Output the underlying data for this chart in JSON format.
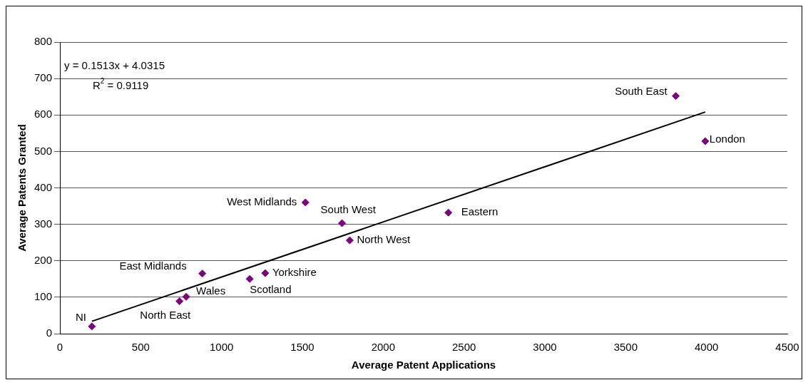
{
  "chart_data": {
    "type": "scatter",
    "xlabel": "Average Patent Applications",
    "ylabel": "Average Patents Granted",
    "xlim": [
      0,
      4500
    ],
    "xticks": [
      0,
      500,
      1000,
      1500,
      2000,
      2500,
      3000,
      3500,
      4000,
      4500
    ],
    "ylim": [
      0,
      800
    ],
    "yticks": [
      0,
      100,
      200,
      300,
      400,
      500,
      600,
      700,
      800
    ],
    "grid": "y",
    "legend": false,
    "marker": "diamond",
    "series": [
      {
        "color": "#7f0080",
        "x": [
          198,
          740,
          781,
          881,
          1174,
          1270,
          1519,
          1745,
          1793,
          2403,
          3810,
          3992
        ],
        "values": [
          20,
          89,
          101,
          165,
          150,
          166,
          360,
          303,
          256,
          332,
          652,
          528
        ]
      },
      {
        "type": "line",
        "color": "#000000",
        "x": [
          198,
          3992
        ],
        "values": [
          34,
          608
        ],
        "marker": "none",
        "line_style": "solid"
      }
    ],
    "annotations": [
      {
        "text": "NI",
        "x": 198,
        "y": 20
      },
      {
        "text": "North East",
        "x": 740,
        "y": 89
      },
      {
        "text": "Wales",
        "x": 781,
        "y": 101
      },
      {
        "text": "East Midlands",
        "x": 881,
        "y": 165
      },
      {
        "text": "Scotland",
        "x": 1174,
        "y": 150
      },
      {
        "text": "Yorkshire",
        "x": 1270,
        "y": 166
      },
      {
        "text": "West Midlands",
        "x": 1519,
        "y": 360
      },
      {
        "text": "South West",
        "x": 1745,
        "y": 303
      },
      {
        "text": "North West",
        "x": 1793,
        "y": 256
      },
      {
        "text": "Eastern",
        "x": 2403,
        "y": 332
      },
      {
        "text": "South East",
        "x": 3810,
        "y": 652
      },
      {
        "text": "London",
        "x": 3992,
        "y": 528
      },
      "y = 0.1513x + 4.0315",
      "R$^{2}$ = 0.9119"
    ]
  }
}
